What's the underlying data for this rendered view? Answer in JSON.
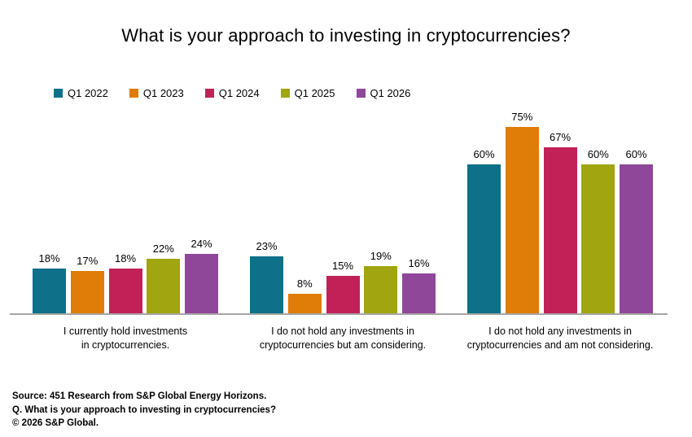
{
  "title": "What is your approach to investing in cryptocurrencies?",
  "chart_data": {
    "type": "bar",
    "title": "What is your approach to investing in cryptocurrencies?",
    "value_suffix": "%",
    "ylim": [
      0,
      80
    ],
    "grid": false,
    "legend_position": "top-left",
    "axis_color": "#a6a6a6",
    "categories": [
      [
        "I currently hold investments",
        "in cryptocurrencies."
      ],
      [
        "I do not hold any investments in",
        "cryptocurrencies but am considering."
      ],
      [
        "I do not hold any investments in",
        "cryptocurrencies and am not considering."
      ]
    ],
    "series": [
      {
        "name": "Q1 2022",
        "color": "#0e7089",
        "values": [
          18,
          23,
          60
        ]
      },
      {
        "name": "Q1 2023",
        "color": "#e07c08",
        "values": [
          17,
          8,
          75
        ]
      },
      {
        "name": "Q1 2024",
        "color": "#c22158",
        "values": [
          18,
          15,
          67
        ]
      },
      {
        "name": "Q1 2025",
        "color": "#a0a510",
        "values": [
          22,
          19,
          60
        ]
      },
      {
        "name": "Q1 2026",
        "color": "#8f4799",
        "values": [
          24,
          16,
          60
        ]
      }
    ]
  },
  "footer": {
    "line1": "Source: 451 Research from S&P Global Energy Horizons.",
    "line2": "Q. What is your approach to investing in cryptocurrencies?",
    "line3": "© 2026 S&P Global."
  }
}
